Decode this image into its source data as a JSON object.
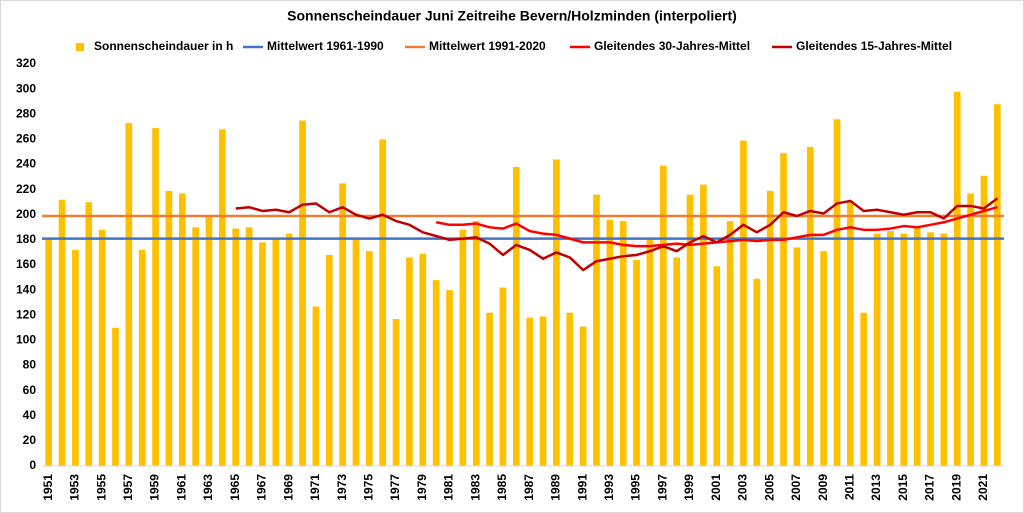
{
  "chart_data": {
    "type": "bar",
    "title": "Sonnenscheindauer Juni Zeitreihe Bevern/Holzminden (interpoliert)",
    "categories": [
      "1951",
      null,
      "1953",
      null,
      "1955",
      null,
      "1957",
      null,
      "1959",
      null,
      "1961",
      null,
      "1963",
      null,
      "1965",
      null,
      "1967",
      null,
      "1969",
      null,
      "1971",
      null,
      "1973",
      null,
      "1975",
      null,
      "1977",
      null,
      "1979",
      null,
      "1981",
      null,
      "1983",
      null,
      "1985",
      null,
      "1987",
      null,
      "1989",
      null,
      "1991",
      null,
      "1993",
      null,
      "1995",
      null,
      "1997",
      null,
      "1999",
      null,
      "2001",
      null,
      "2003",
      null,
      "2005",
      null,
      "2007",
      null,
      "2009",
      null,
      "2011",
      null,
      "2013",
      null,
      "2015",
      null,
      "2017",
      null,
      "2019",
      null,
      "2021",
      null
    ],
    "series": [
      {
        "name": "Sonnenscheindauer in h",
        "type": "bar",
        "color": "#FFC000",
        "values": [
          181,
          212,
          172,
          210,
          188,
          110,
          273,
          172,
          269,
          219,
          217,
          190,
          199,
          268,
          189,
          190,
          178,
          181,
          185,
          275,
          127,
          168,
          225,
          180,
          171,
          260,
          117,
          166,
          169,
          148,
          140,
          188,
          195,
          122,
          142,
          238,
          118,
          119,
          244,
          122,
          111,
          216,
          196,
          195,
          164,
          180,
          239,
          166,
          216,
          224,
          159,
          195,
          259,
          149,
          219,
          249,
          174,
          254,
          171,
          276,
          210,
          122,
          185,
          187,
          185,
          190,
          186,
          185,
          298,
          217,
          231,
          288
        ]
      },
      {
        "name": "Mittelwert 1961-1990",
        "type": "hline",
        "color": "#4472C4",
        "value": 181
      },
      {
        "name": "Mittelwert 1991-2020",
        "type": "hline",
        "color": "#ED7D31",
        "value": 199
      },
      {
        "name": "Gleitendes 30-Jahres-Mittel",
        "type": "line",
        "color": "#FF0000",
        "values": [
          null,
          null,
          null,
          null,
          null,
          null,
          null,
          null,
          null,
          null,
          null,
          null,
          null,
          null,
          null,
          null,
          null,
          null,
          null,
          null,
          null,
          null,
          null,
          null,
          null,
          null,
          null,
          null,
          null,
          194,
          192,
          192,
          193,
          190,
          189,
          193,
          187,
          185,
          184,
          181,
          178,
          178,
          178,
          176,
          175,
          175,
          176,
          177,
          176,
          177,
          178,
          179,
          180,
          179,
          180,
          180,
          182,
          184,
          184,
          188,
          190,
          188,
          188,
          189,
          191,
          190,
          192,
          194,
          197,
          200,
          203,
          206
        ]
      },
      {
        "name": "Gleitendes 15-Jahres-Mittel",
        "type": "line",
        "color": "#C00000",
        "values": [
          null,
          null,
          null,
          null,
          null,
          null,
          null,
          null,
          null,
          null,
          null,
          null,
          null,
          null,
          205,
          206,
          203,
          204,
          202,
          208,
          209,
          202,
          206,
          200,
          197,
          200,
          195,
          192,
          186,
          183,
          180,
          181,
          182,
          177,
          168,
          176,
          172,
          165,
          170,
          166,
          156,
          163,
          165,
          167,
          168,
          171,
          175,
          171,
          178,
          183,
          178,
          184,
          192,
          186,
          192,
          202,
          199,
          203,
          201,
          209,
          211,
          203,
          204,
          202,
          200,
          202,
          202,
          197,
          207,
          207,
          205,
          213
        ]
      }
    ],
    "ylim": [
      0,
      320
    ],
    "yticks": [
      0,
      20,
      40,
      60,
      80,
      100,
      120,
      140,
      160,
      180,
      200,
      220,
      240,
      260,
      280,
      300,
      320
    ],
    "grid": false,
    "legend": "top"
  }
}
